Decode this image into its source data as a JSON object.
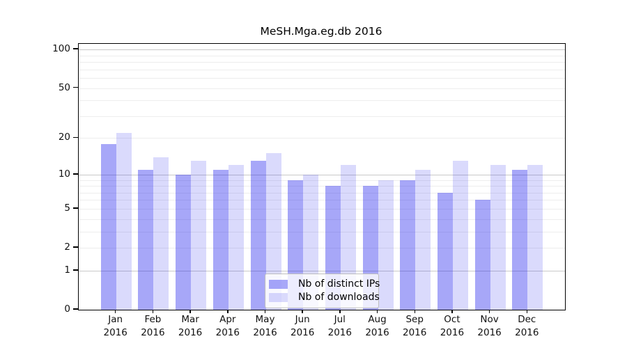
{
  "chart": {
    "title": "MeSH.Mga.eg.db 2016"
  },
  "legend": {
    "items": [
      {
        "label": "Nb of distinct IPs",
        "color": "rgba(34,34,238,0.40)"
      },
      {
        "label": "Nb of downloads",
        "color": "rgba(34,34,238,0.17)"
      }
    ]
  },
  "chart_data": {
    "type": "bar",
    "title": "MeSH.Mga.eg.db 2016",
    "categories": [
      "Jan 2016",
      "Feb 2016",
      "Mar 2016",
      "Apr 2016",
      "May 2016",
      "Jun 2016",
      "Jul 2016",
      "Aug 2016",
      "Sep 2016",
      "Oct 2016",
      "Nov 2016",
      "Dec 2016"
    ],
    "series": [
      {
        "name": "Nb of distinct IPs",
        "color": "rgba(34,34,238,0.40)",
        "values": [
          18,
          11,
          10,
          11,
          13,
          9,
          8,
          8,
          9,
          7,
          6,
          11
        ]
      },
      {
        "name": "Nb of downloads",
        "color": "rgba(34,34,238,0.17)",
        "values": [
          22,
          14,
          13,
          12,
          15,
          10,
          12,
          9,
          11,
          13,
          12,
          12
        ]
      }
    ],
    "xlabel": "",
    "ylabel": "",
    "yscale": "log1p",
    "ylim": [
      0,
      113
    ],
    "y_ticks": [
      0,
      1,
      2,
      5,
      10,
      20,
      50,
      100
    ],
    "y_major_grid": [
      1,
      10,
      100
    ],
    "y_minor_grid": [
      2,
      3,
      4,
      5,
      6,
      7,
      8,
      9,
      20,
      30,
      40,
      50,
      60,
      70,
      80,
      90
    ],
    "grid": "horizontal",
    "legend_position": "lower center"
  },
  "colors": {
    "bar_distinct_ips": "rgba(34,34,238,0.40)",
    "bar_downloads": "rgba(34,34,238,0.17)",
    "grid_major": "#c9c9c9",
    "grid_minor": "#ededed",
    "axis": "#000000",
    "legend_border": "#bfbfbf",
    "background": "#ffffff"
  }
}
